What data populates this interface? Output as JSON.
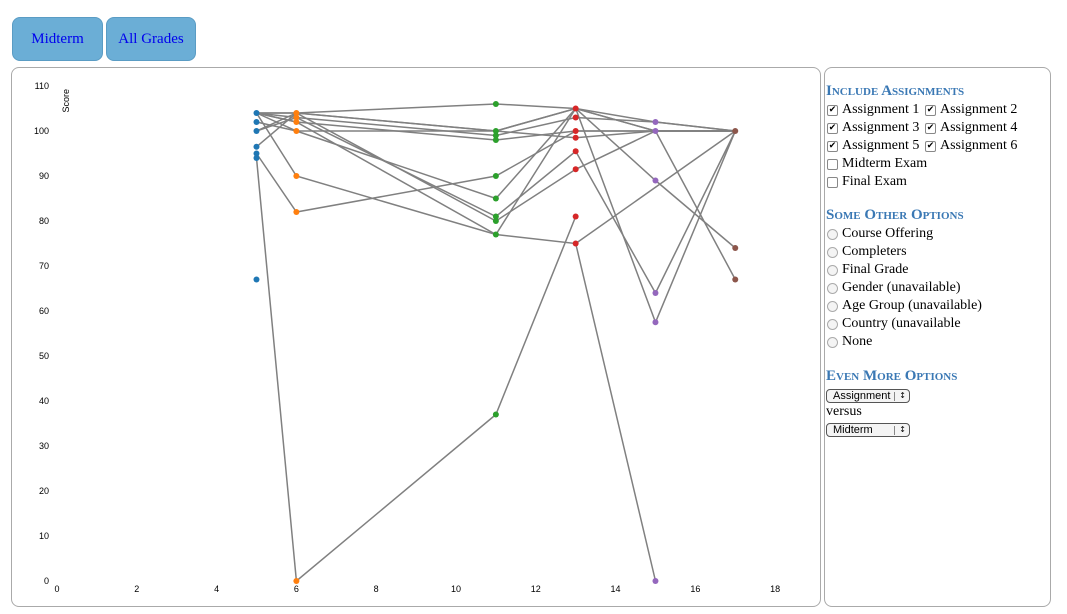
{
  "header": {
    "midterm_label": "Midterm",
    "all_grades_label": "All Grades"
  },
  "sidebar": {
    "include_title": "Include Assignments",
    "assignments": [
      {
        "label": "Assignment 1",
        "checked": true
      },
      {
        "label": "Assignment 2",
        "checked": true
      },
      {
        "label": "Assignment 3",
        "checked": true
      },
      {
        "label": "Assignment 4",
        "checked": true
      },
      {
        "label": "Assignment 5",
        "checked": true
      },
      {
        "label": "Assignment 6",
        "checked": true
      },
      {
        "label": "Midterm Exam",
        "checked": false
      },
      {
        "label": "Final Exam",
        "checked": false
      }
    ],
    "other_title": "Some Other Options",
    "other_options": [
      "Course Offering",
      "Completers",
      "Final Grade",
      "Gender (unavailable)",
      "Age Group (unavailable)",
      "Country (unavailable",
      "None"
    ],
    "more_title": "Even More Options",
    "select1_value": "Assignment",
    "versus_label": "versus",
    "select2_value": "Midterm"
  },
  "chart_data": {
    "type": "scatter",
    "ylabel": "Score",
    "xlabel": "",
    "xlim": [
      0,
      19.5
    ],
    "ylim": [
      0,
      110
    ],
    "x_ticks": [
      0,
      2,
      4,
      6,
      8,
      10,
      12,
      14,
      16,
      18
    ],
    "y_ticks": [
      0,
      10,
      20,
      30,
      40,
      50,
      60,
      70,
      80,
      90,
      100,
      110
    ],
    "line_color": "#808080",
    "colors": {
      "5": "#1f77b4",
      "6": "#ff7f0e",
      "11": "#2ca02c",
      "13": "#d62728",
      "15": "#9467bd",
      "17": "#8c564b"
    },
    "points": [
      [
        5,
        104
      ],
      [
        5,
        102
      ],
      [
        5,
        100
      ],
      [
        5,
        96.5
      ],
      [
        5,
        95
      ],
      [
        5,
        94
      ],
      [
        5,
        67
      ],
      [
        6,
        104
      ],
      [
        6,
        103
      ],
      [
        6,
        102
      ],
      [
        6,
        100
      ],
      [
        6,
        90
      ],
      [
        6,
        82
      ],
      [
        6,
        0
      ],
      [
        11,
        106
      ],
      [
        11,
        100
      ],
      [
        11,
        99
      ],
      [
        11,
        98
      ],
      [
        11,
        90
      ],
      [
        11,
        85
      ],
      [
        11,
        81
      ],
      [
        11,
        80
      ],
      [
        11,
        77
      ],
      [
        11,
        37
      ],
      [
        13,
        105
      ],
      [
        13,
        103
      ],
      [
        13,
        100
      ],
      [
        13,
        98.5
      ],
      [
        13,
        95.5
      ],
      [
        13,
        91.5
      ],
      [
        13,
        81
      ],
      [
        13,
        75
      ],
      [
        15,
        102
      ],
      [
        15,
        100
      ],
      [
        15,
        89
      ],
      [
        15,
        64
      ],
      [
        15,
        57.5
      ],
      [
        15,
        0
      ],
      [
        17,
        100
      ],
      [
        17,
        74
      ],
      [
        17,
        67
      ]
    ],
    "paths": [
      [
        [
          5,
          104
        ],
        [
          6,
          104
        ],
        [
          11,
          100
        ],
        [
          13,
          105
        ],
        [
          15,
          100
        ],
        [
          17,
          100
        ]
      ],
      [
        [
          5,
          104
        ],
        [
          6,
          103
        ],
        [
          11,
          99
        ],
        [
          13,
          103
        ],
        [
          15,
          102
        ],
        [
          17,
          100
        ]
      ],
      [
        [
          5,
          104
        ],
        [
          6,
          102
        ],
        [
          11,
          98
        ],
        [
          13,
          100
        ],
        [
          15,
          100
        ],
        [
          17,
          100
        ]
      ],
      [
        [
          5,
          104
        ],
        [
          6,
          104
        ],
        [
          11,
          106
        ],
        [
          13,
          105
        ],
        [
          15,
          102
        ],
        [
          17,
          100
        ]
      ],
      [
        [
          5,
          102
        ],
        [
          6,
          100
        ],
        [
          11,
          100
        ],
        [
          13,
          105
        ],
        [
          15,
          100
        ],
        [
          17,
          100
        ]
      ],
      [
        [
          5,
          100
        ],
        [
          6,
          104
        ],
        [
          11,
          100
        ],
        [
          13,
          98.5
        ],
        [
          15,
          100
        ],
        [
          17,
          100
        ]
      ],
      [
        [
          5,
          104
        ],
        [
          6,
          100
        ],
        [
          11,
          85
        ],
        [
          13,
          105
        ],
        [
          15,
          89
        ],
        [
          17,
          74
        ]
      ],
      [
        [
          5,
          100
        ],
        [
          6,
          103
        ],
        [
          11,
          81
        ],
        [
          13,
          95.5
        ],
        [
          15,
          64
        ],
        [
          17,
          100
        ]
      ],
      [
        [
          5,
          104
        ],
        [
          6,
          90
        ],
        [
          11,
          77
        ],
        [
          13,
          105
        ],
        [
          15,
          57.5
        ],
        [
          17,
          100
        ]
      ],
      [
        [
          5,
          96.5
        ],
        [
          6,
          104
        ],
        [
          11,
          80
        ],
        [
          13,
          91.5
        ],
        [
          15,
          100
        ],
        [
          17,
          67
        ]
      ],
      [
        [
          5,
          104
        ],
        [
          6,
          102
        ],
        [
          11,
          77
        ],
        [
          13,
          75
        ],
        [
          15,
          0
        ]
      ],
      [
        [
          5,
          95
        ],
        [
          6,
          82
        ],
        [
          11,
          90
        ],
        [
          13,
          100
        ],
        [
          15,
          100
        ],
        [
          17,
          100
        ]
      ],
      [
        [
          5,
          94
        ],
        [
          6,
          0
        ],
        [
          11,
          37
        ],
        [
          13,
          81
        ]
      ],
      [
        [
          13,
          75
        ],
        [
          17,
          100
        ]
      ]
    ]
  }
}
